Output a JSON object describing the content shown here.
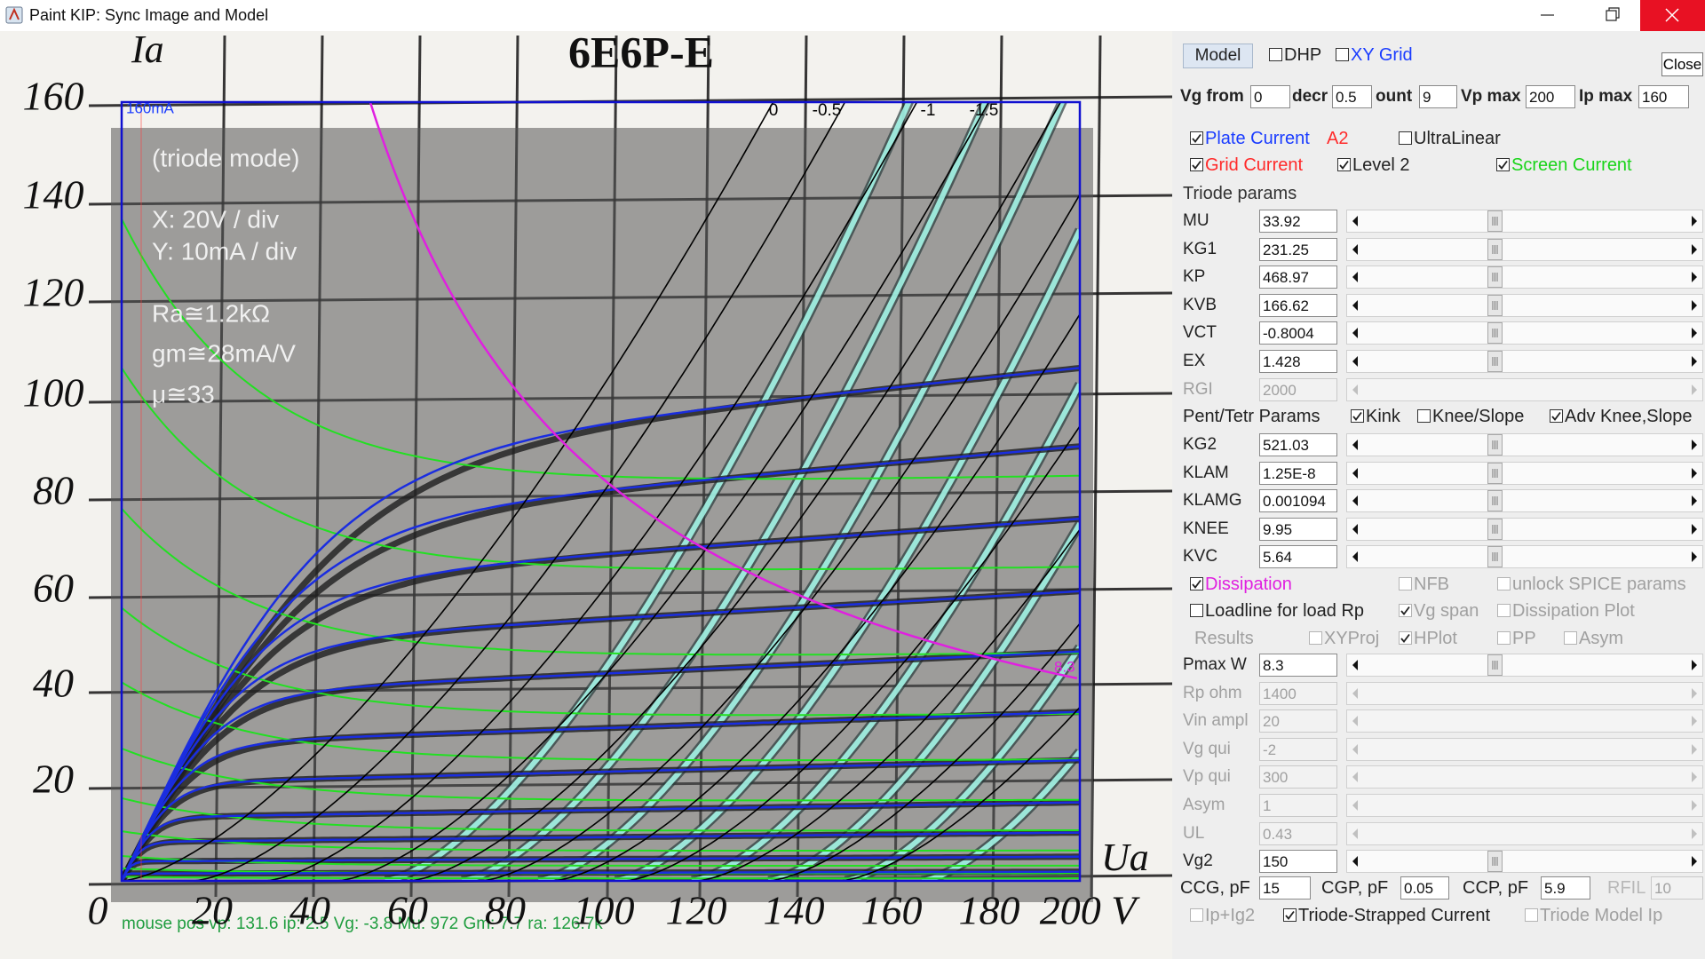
{
  "window": {
    "title": "Paint KIP: Sync Image and Model",
    "close_tooltip": "Close"
  },
  "plot": {
    "heading": "6E6P-E",
    "axis_marks": [
      "Ia",
      "Ua"
    ],
    "y_labels": [
      160,
      140,
      120,
      100,
      80,
      60,
      40,
      20
    ],
    "x_labels": [
      0,
      20,
      40,
      60,
      80,
      100,
      120,
      140,
      160,
      180,
      "200 V"
    ],
    "notes": [
      "(triode mode)",
      "X: 20V / div",
      "Y: 10mA / div",
      "Ra≅1.2kΩ",
      "gm≅28mA/V",
      "μ≅33"
    ],
    "frame_label": "160mA",
    "curve_labels": [
      "0",
      "-0.5",
      "-1",
      "-1.5"
    ],
    "dissipation_label": "8.3",
    "status": "mouse pos vp: 131.6   ip: 2.5   Vg: -3.8   Mu: 972   Gm: 7.7   ra: 126.7k"
  },
  "panel": {
    "model_button": "Model",
    "top_checks": [
      {
        "label": "DHP",
        "checked": false
      },
      {
        "label": "XY Grid",
        "checked": false,
        "color": "#1a3cff"
      }
    ],
    "range": [
      {
        "label": "Vg from",
        "value": "0"
      },
      {
        "label": "decr",
        "value": "0.5"
      },
      {
        "label": "ount",
        "value": "9"
      },
      {
        "label": "Vp max",
        "value": "200"
      },
      {
        "label": "Ip max",
        "value": "160"
      }
    ],
    "options_a": [
      [
        {
          "label": "Plate Current",
          "checked": true,
          "color": "#1a3cff"
        },
        {
          "label": "A2",
          "color": "#ff2a2a"
        },
        {
          "label": "UltraLinear",
          "checked": false
        }
      ],
      [
        {
          "label": "Grid Current",
          "checked": true,
          "color": "#ff2a2a"
        },
        {
          "label": "Level 2",
          "checked": true
        },
        {
          "label": "Screen Current",
          "checked": true,
          "color": "#19d419"
        }
      ]
    ],
    "triode_heading": "Triode params",
    "triode_params": [
      {
        "name": "MU",
        "value": "33.92",
        "enabled": true
      },
      {
        "name": "KG1",
        "value": "231.25",
        "enabled": true
      },
      {
        "name": "KP",
        "value": "468.97",
        "enabled": true
      },
      {
        "name": "KVB",
        "value": "166.62",
        "enabled": true
      },
      {
        "name": "VCT",
        "value": "-0.8004",
        "enabled": true
      },
      {
        "name": "EX",
        "value": "1.428",
        "enabled": true
      },
      {
        "name": "RGI",
        "value": "2000",
        "enabled": false
      }
    ],
    "pent_row": [
      {
        "label": "Pent/Tetr Params"
      },
      {
        "label": "Kink",
        "checked": true
      },
      {
        "label": "Knee/Slope",
        "checked": false
      },
      {
        "label": "Adv Knee,Slope",
        "checked": true
      }
    ],
    "pent_params": [
      {
        "name": "KG2",
        "value": "521.03",
        "enabled": true
      },
      {
        "name": "KLAM",
        "value": "1.25E-8",
        "enabled": true
      },
      {
        "name": "KLAMG",
        "value": "0.001094",
        "enabled": true
      },
      {
        "name": "KNEE",
        "value": "9.95",
        "enabled": true
      },
      {
        "name": "KVC",
        "value": "5.64",
        "enabled": true
      }
    ],
    "options_b": [
      [
        {
          "label": "Dissipation",
          "checked": true,
          "color": "#e020e0"
        },
        {
          "label": "NFB",
          "checked": false,
          "enabled": false
        },
        {
          "label": "unlock SPICE params",
          "checked": false,
          "enabled": false
        }
      ],
      [
        {
          "label": "Loadline for load Rp",
          "checked": false
        },
        {
          "label": "Vg span",
          "checked": true,
          "enabled": false
        },
        {
          "label": "Dissipation Plot",
          "checked": false,
          "enabled": false
        }
      ],
      [
        {
          "label": "Results",
          "enabled": false
        },
        {
          "label": "XYProj",
          "checked": false,
          "enabled": false
        },
        {
          "label": "HPlot",
          "checked": true,
          "enabled": false
        },
        {
          "label": "PP",
          "checked": false,
          "enabled": false
        },
        {
          "label": "Asym",
          "checked": false,
          "enabled": false
        }
      ]
    ],
    "load_params": [
      {
        "name": "Pmax W",
        "value": "8.3",
        "enabled": true
      },
      {
        "name": "Rp ohm",
        "value": "1400",
        "enabled": false
      },
      {
        "name": "Vin ampl",
        "value": "20",
        "enabled": false
      },
      {
        "name": "Vg qui",
        "value": "-2",
        "enabled": false
      },
      {
        "name": "Vp qui",
        "value": "300",
        "enabled": false
      },
      {
        "name": "Asym",
        "value": "1",
        "enabled": false
      },
      {
        "name": "UL",
        "value": "0.43",
        "enabled": false
      },
      {
        "name": "Vg2",
        "value": "150",
        "enabled": true
      }
    ],
    "cap_fields": [
      {
        "label": "CCG, pF",
        "value": "15",
        "enabled": true
      },
      {
        "label": "CGP, pF",
        "value": "0.05",
        "enabled": true
      },
      {
        "label": "CCP, pF",
        "value": "5.9",
        "enabled": true
      },
      {
        "label": "RFIL",
        "value": "10",
        "enabled": false
      }
    ],
    "options_c": [
      [
        {
          "label": "Ip+Ig2",
          "checked": false,
          "enabled": false
        },
        {
          "label": "Triode-Strapped Current",
          "checked": true
        },
        {
          "label": "Triode Model Ip",
          "checked": false,
          "enabled": false
        }
      ]
    ]
  }
}
